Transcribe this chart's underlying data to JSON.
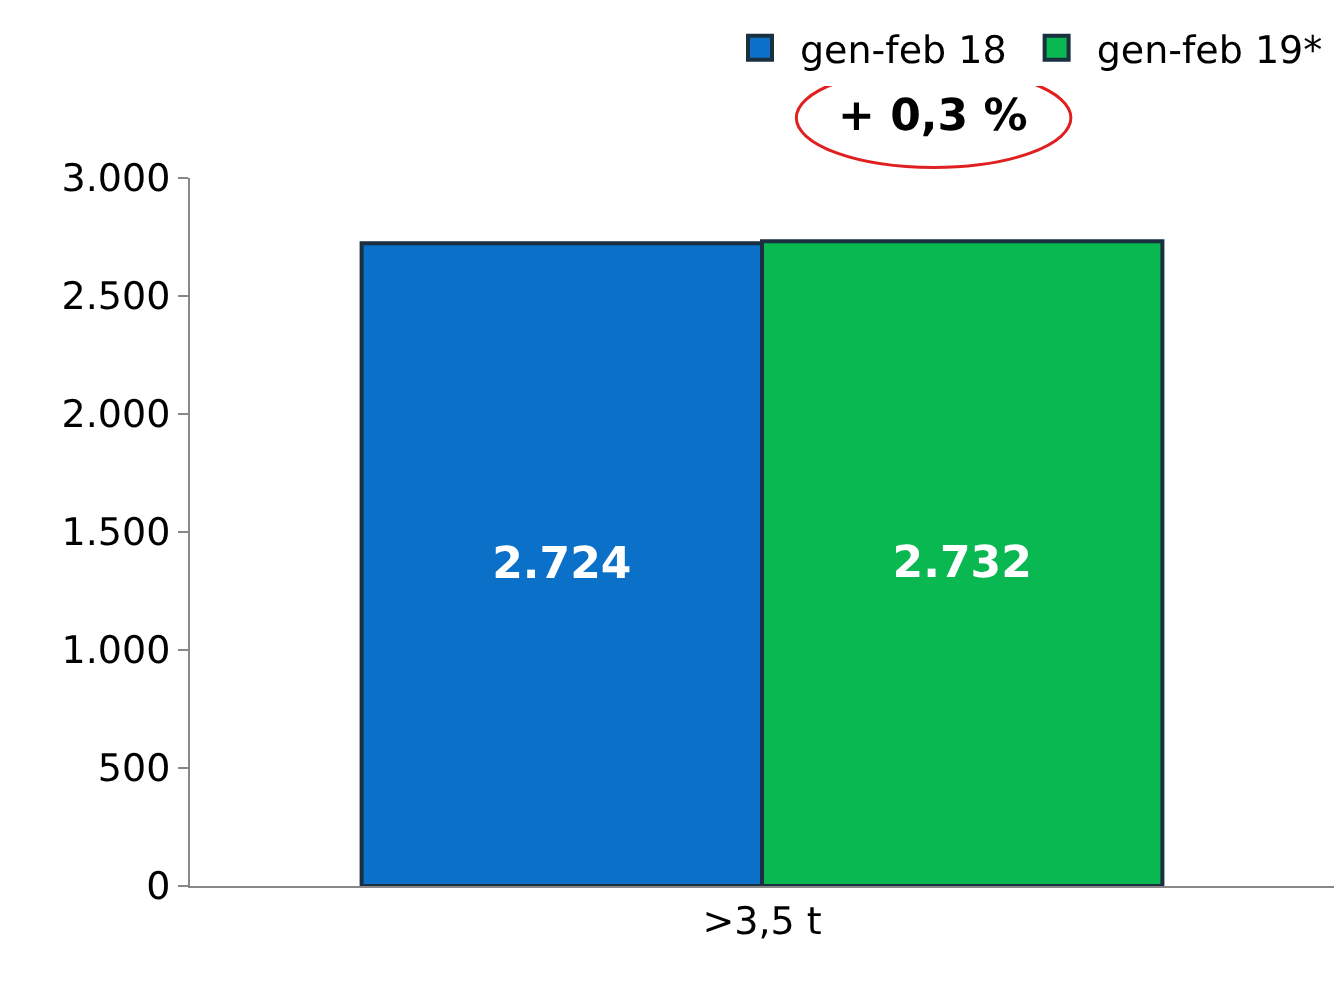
{
  "chart_data": {
    "type": "bar",
    "categories": [
      ">3,5 t"
    ],
    "series": [
      {
        "name": "gen-feb 18",
        "color": "#0a70c8",
        "values": [
          2724
        ],
        "value_labels": [
          "2.724"
        ]
      },
      {
        "name": "gen-feb 19*",
        "color": "#09b850",
        "values": [
          2732
        ],
        "value_labels": [
          "2.732"
        ]
      }
    ],
    "ylim": [
      0,
      3000
    ],
    "yticks": [
      {
        "value": 0,
        "label": "0"
      },
      {
        "value": 500,
        "label": "500"
      },
      {
        "value": 1000,
        "label": "1.000"
      },
      {
        "value": 1500,
        "label": "1.500"
      },
      {
        "value": 2000,
        "label": "2.000"
      },
      {
        "value": 2500,
        "label": "2.500"
      },
      {
        "value": 3000,
        "label": "3.000"
      }
    ],
    "annotations": [
      "+ 0,3 %"
    ],
    "legend": "top right"
  }
}
